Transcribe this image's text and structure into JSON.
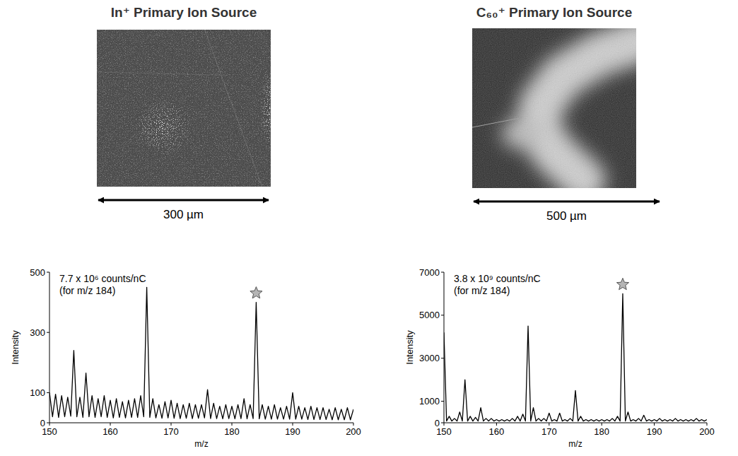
{
  "images": [
    {
      "title": "In⁺ Primary Ion Source",
      "scale_label": "300 µm"
    },
    {
      "title": "C₆₀⁺ Primary Ion Source",
      "scale_label": "500 µm"
    }
  ],
  "chart_data": [
    {
      "type": "line",
      "x_label": "m/z",
      "y_label": "Intensity",
      "annotations": [
        "7.7 x 10⁶ counts/nC",
        "(for m/z 184)"
      ],
      "marked_peak": 184,
      "marker": "star",
      "color": "#000000",
      "x": [
        150,
        150.5,
        151,
        151.5,
        152,
        152.5,
        153,
        153.5,
        154,
        154.5,
        155,
        155.5,
        156,
        156.5,
        157,
        157.5,
        158,
        158.5,
        159,
        159.5,
        160,
        160.5,
        161,
        161.5,
        162,
        162.5,
        163,
        163.5,
        164,
        164.5,
        165,
        165.5,
        166,
        166.5,
        167,
        167.5,
        168,
        168.5,
        169,
        169.5,
        170,
        170.5,
        171,
        171.5,
        172,
        172.5,
        173,
        173.5,
        174,
        174.5,
        175,
        175.5,
        176,
        176.5,
        177,
        177.5,
        178,
        178.5,
        179,
        179.5,
        180,
        180.5,
        181,
        181.5,
        182,
        182.5,
        183,
        183.5,
        184,
        184.5,
        185,
        185.5,
        186,
        186.5,
        187,
        187.5,
        188,
        188.5,
        189,
        189.5,
        190,
        190.5,
        191,
        191.5,
        192,
        192.5,
        193,
        193.5,
        194,
        194.5,
        195,
        195.5,
        196,
        196.5,
        197,
        197.5,
        198,
        198.5,
        199,
        199.5,
        200
      ],
      "values": [
        100,
        20,
        95,
        18,
        90,
        20,
        85,
        22,
        240,
        20,
        85,
        18,
        165,
        20,
        90,
        18,
        80,
        20,
        90,
        18,
        75,
        16,
        80,
        18,
        70,
        16,
        75,
        18,
        80,
        18,
        90,
        20,
        450,
        18,
        80,
        16,
        60,
        15,
        70,
        16,
        75,
        15,
        65,
        14,
        60,
        15,
        65,
        14,
        60,
        15,
        60,
        16,
        110,
        14,
        65,
        14,
        55,
        13,
        60,
        14,
        55,
        13,
        60,
        14,
        80,
        13,
        60,
        14,
        400,
        13,
        60,
        12,
        55,
        12,
        60,
        12,
        50,
        12,
        55,
        12,
        100,
        12,
        55,
        12,
        50,
        11,
        55,
        11,
        50,
        11,
        50,
        11,
        45,
        10,
        50,
        10,
        45,
        10,
        50,
        10,
        45
      ],
      "xlim": [
        150,
        200
      ],
      "xticks": [
        150,
        160,
        170,
        180,
        190,
        200
      ],
      "ylim": [
        0,
        500
      ],
      "yticks": [
        0,
        100,
        300,
        500
      ]
    },
    {
      "type": "line",
      "x_label": "m/z",
      "y_label": "Intensity",
      "annotations": [
        "3.8 x 10⁹ counts/nC",
        "(for m/z 184)"
      ],
      "marked_peak": 184,
      "marker": "star",
      "color": "#000000",
      "x": [
        150,
        150.5,
        151,
        151.5,
        152,
        152.5,
        153,
        153.5,
        154,
        154.5,
        155,
        155.5,
        156,
        156.5,
        157,
        157.5,
        158,
        158.5,
        159,
        159.5,
        160,
        160.5,
        161,
        161.5,
        162,
        162.5,
        163,
        163.5,
        164,
        164.5,
        165,
        165.5,
        166,
        166.5,
        167,
        167.5,
        168,
        168.5,
        169,
        169.5,
        170,
        170.5,
        171,
        171.5,
        172,
        172.5,
        173,
        173.5,
        174,
        174.5,
        175,
        175.5,
        176,
        176.5,
        177,
        177.5,
        178,
        178.5,
        179,
        179.5,
        180,
        180.5,
        181,
        181.5,
        182,
        182.5,
        183,
        183.5,
        184,
        184.5,
        185,
        185.5,
        186,
        186.5,
        187,
        187.5,
        188,
        188.5,
        189,
        189.5,
        190,
        190.5,
        191,
        191.5,
        192,
        192.5,
        193,
        193.5,
        194,
        194.5,
        195,
        195.5,
        196,
        196.5,
        197,
        197.5,
        198,
        198.5,
        199,
        199.5,
        200
      ],
      "values": [
        4200,
        80,
        300,
        80,
        200,
        80,
        500,
        80,
        2000,
        80,
        300,
        80,
        250,
        80,
        700,
        80,
        200,
        80,
        200,
        80,
        150,
        80,
        150,
        80,
        150,
        80,
        200,
        80,
        300,
        80,
        400,
        80,
        4500,
        80,
        700,
        80,
        200,
        80,
        200,
        80,
        450,
        80,
        150,
        80,
        450,
        80,
        150,
        80,
        200,
        80,
        1500,
        80,
        300,
        80,
        150,
        80,
        150,
        80,
        150,
        80,
        150,
        80,
        150,
        80,
        200,
        80,
        300,
        80,
        6000,
        80,
        500,
        80,
        150,
        80,
        200,
        80,
        350,
        80,
        150,
        80,
        150,
        80,
        200,
        80,
        150,
        80,
        150,
        80,
        200,
        80,
        150,
        80,
        150,
        80,
        150,
        80,
        200,
        80,
        150,
        80,
        150
      ],
      "xlim": [
        150,
        200
      ],
      "xticks": [
        150,
        160,
        170,
        180,
        190,
        200
      ],
      "ylim": [
        0,
        7000
      ],
      "yticks": [
        0,
        1000,
        3000,
        5000,
        7000
      ]
    }
  ]
}
